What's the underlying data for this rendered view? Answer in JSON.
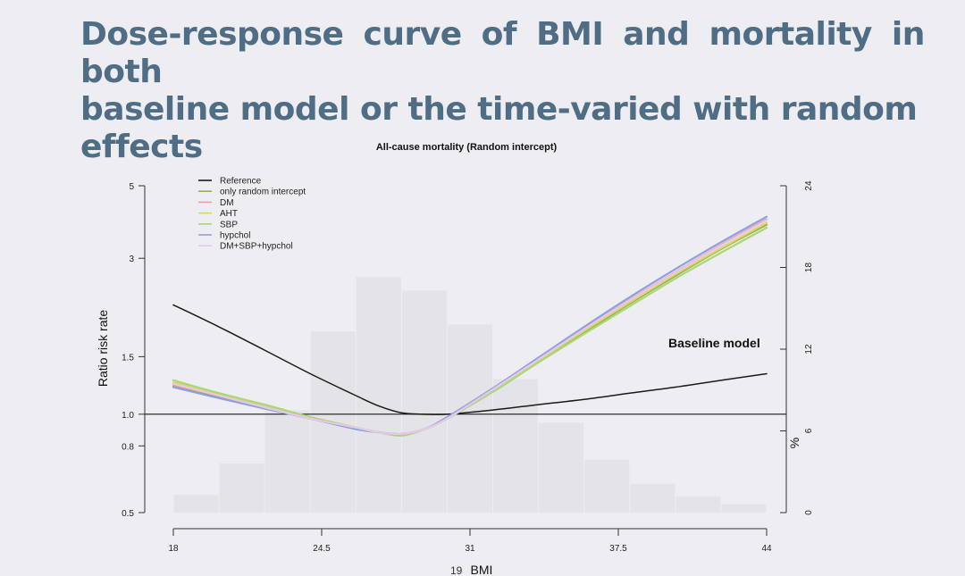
{
  "slide": {
    "title_line1": "Dose-response curve of BMI and mortality in both",
    "title_line2": "baseline model or the time-varied with random effects",
    "page_number": "19"
  },
  "chart_data": {
    "type": "line",
    "title": "All-cause mortality (Random intercept)",
    "xlabel": "BMI",
    "ylabel": "Ratio risk rate",
    "y2label": "%",
    "xlim": [
      18,
      44
    ],
    "ylim": [
      0.5,
      5
    ],
    "y_log_scale": true,
    "y2lim": [
      0,
      24
    ],
    "xticks": [
      "18",
      "24.5",
      "31",
      "37.5",
      "44"
    ],
    "yticks": [
      "0.5",
      "0.8",
      "1.0",
      "1.5",
      "3",
      "5"
    ],
    "y2ticks": [
      "0",
      "6",
      "12",
      "18",
      "24"
    ],
    "reference_line_y": 1.0,
    "annotation": "Baseline model",
    "legend_position": "top-left",
    "histogram": {
      "bin_edges": [
        18,
        20,
        22,
        24,
        26,
        28,
        30,
        32,
        34,
        36,
        38,
        40,
        42,
        44
      ],
      "percent": [
        1.3,
        3.6,
        7.5,
        13.3,
        17.3,
        16.3,
        13.8,
        9.8,
        6.6,
        3.9,
        2.1,
        1.2,
        0.6
      ],
      "color": "#e4e3e7"
    },
    "series": [
      {
        "name": "Reference",
        "color": "#1a1a1a",
        "x": [
          18,
          20,
          22,
          24,
          26,
          27,
          28,
          29,
          30,
          32,
          34,
          36,
          38,
          40,
          42,
          44
        ],
        "y": [
          2.16,
          1.85,
          1.57,
          1.33,
          1.14,
          1.06,
          1.01,
          1.0,
          1.0,
          1.03,
          1.07,
          1.11,
          1.16,
          1.21,
          1.27,
          1.33
        ]
      },
      {
        "name": "only random intercept",
        "color": "#9ab04a",
        "x": [
          18,
          20,
          22,
          24,
          26,
          27,
          28,
          29,
          30,
          32,
          34,
          36,
          38,
          40,
          42,
          44
        ],
        "y": [
          1.22,
          1.13,
          1.05,
          0.97,
          0.91,
          0.88,
          0.87,
          0.9,
          0.97,
          1.18,
          1.45,
          1.78,
          2.18,
          2.65,
          3.2,
          3.8
        ]
      },
      {
        "name": "DM",
        "color": "#e8a0a8",
        "x": [
          18,
          20,
          22,
          24,
          26,
          27,
          28,
          29,
          30,
          32,
          34,
          36,
          38,
          40,
          42,
          44
        ],
        "y": [
          1.23,
          1.14,
          1.05,
          0.97,
          0.91,
          0.88,
          0.87,
          0.9,
          0.97,
          1.19,
          1.47,
          1.82,
          2.24,
          2.72,
          3.3,
          3.95
        ]
      },
      {
        "name": "AHT",
        "color": "#d8d860",
        "x": [
          18,
          20,
          22,
          24,
          26,
          27,
          28,
          29,
          30,
          32,
          34,
          36,
          38,
          40,
          42,
          44
        ],
        "y": [
          1.25,
          1.15,
          1.06,
          0.98,
          0.91,
          0.88,
          0.87,
          0.9,
          0.97,
          1.18,
          1.46,
          1.8,
          2.2,
          2.68,
          3.22,
          3.85
        ]
      },
      {
        "name": "SBP",
        "color": "#a8d878",
        "x": [
          18,
          20,
          22,
          24,
          26,
          27,
          28,
          29,
          30,
          32,
          34,
          36,
          38,
          40,
          42,
          44
        ],
        "y": [
          1.27,
          1.16,
          1.07,
          0.98,
          0.91,
          0.88,
          0.86,
          0.9,
          0.97,
          1.17,
          1.44,
          1.76,
          2.14,
          2.6,
          3.12,
          3.72
        ]
      },
      {
        "name": "hypchol",
        "color": "#8fa0e0",
        "x": [
          18,
          20,
          22,
          24,
          26,
          27,
          28,
          29,
          30,
          32,
          34,
          36,
          38,
          40,
          42,
          44
        ],
        "y": [
          1.21,
          1.12,
          1.04,
          0.97,
          0.9,
          0.88,
          0.87,
          0.9,
          0.98,
          1.2,
          1.49,
          1.85,
          2.28,
          2.78,
          3.36,
          4.02
        ]
      },
      {
        "name": "DM+SBP+hypchol",
        "color": "#e8c8e8",
        "x": [
          18,
          20,
          22,
          24,
          26,
          27,
          28,
          29,
          30,
          32,
          34,
          36,
          38,
          40,
          42,
          44
        ],
        "y": [
          1.24,
          1.14,
          1.05,
          0.97,
          0.91,
          0.88,
          0.87,
          0.9,
          0.97,
          1.19,
          1.47,
          1.82,
          2.23,
          2.71,
          3.28,
          3.92
        ]
      }
    ]
  }
}
